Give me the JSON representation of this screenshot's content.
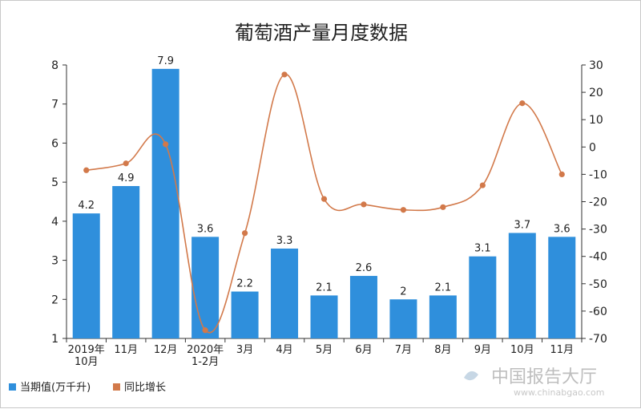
{
  "chart_data": {
    "type": "bar",
    "title": "葡萄酒产量月度数据",
    "categories": [
      "2019年\n10月",
      "11月",
      "12月",
      "2020年\n1-2月",
      "3月",
      "4月",
      "5月",
      "6月",
      "7月",
      "8月",
      "9月",
      "10月",
      "11月"
    ],
    "series": [
      {
        "name": "当期值(万千升)",
        "type": "bar",
        "axis": "left",
        "values": [
          4.2,
          4.9,
          7.9,
          3.6,
          2.2,
          3.3,
          2.1,
          2.6,
          2,
          2.1,
          3.1,
          3.7,
          3.6
        ],
        "color": "#2f8fdc"
      },
      {
        "name": "同比增长",
        "type": "line",
        "axis": "right",
        "values": [
          -8.5,
          -6,
          1,
          -67,
          -31.5,
          26.5,
          -19,
          -21,
          -23,
          -22,
          -14,
          16,
          -10
        ],
        "color": "#d2794a"
      }
    ],
    "y_left": {
      "min": 1,
      "max": 8,
      "ticks": [
        1,
        2,
        3,
        4,
        5,
        6,
        7,
        8
      ]
    },
    "y_right": {
      "min": -70,
      "max": 30,
      "ticks": [
        30,
        20,
        10,
        0,
        -10,
        -20,
        -30,
        -40,
        -50,
        -60,
        -70
      ]
    },
    "legend_position": "bottom-left",
    "grid": false
  },
  "watermark": {
    "brand": "中国报告大厅",
    "url": "www.chinabgao.com"
  }
}
